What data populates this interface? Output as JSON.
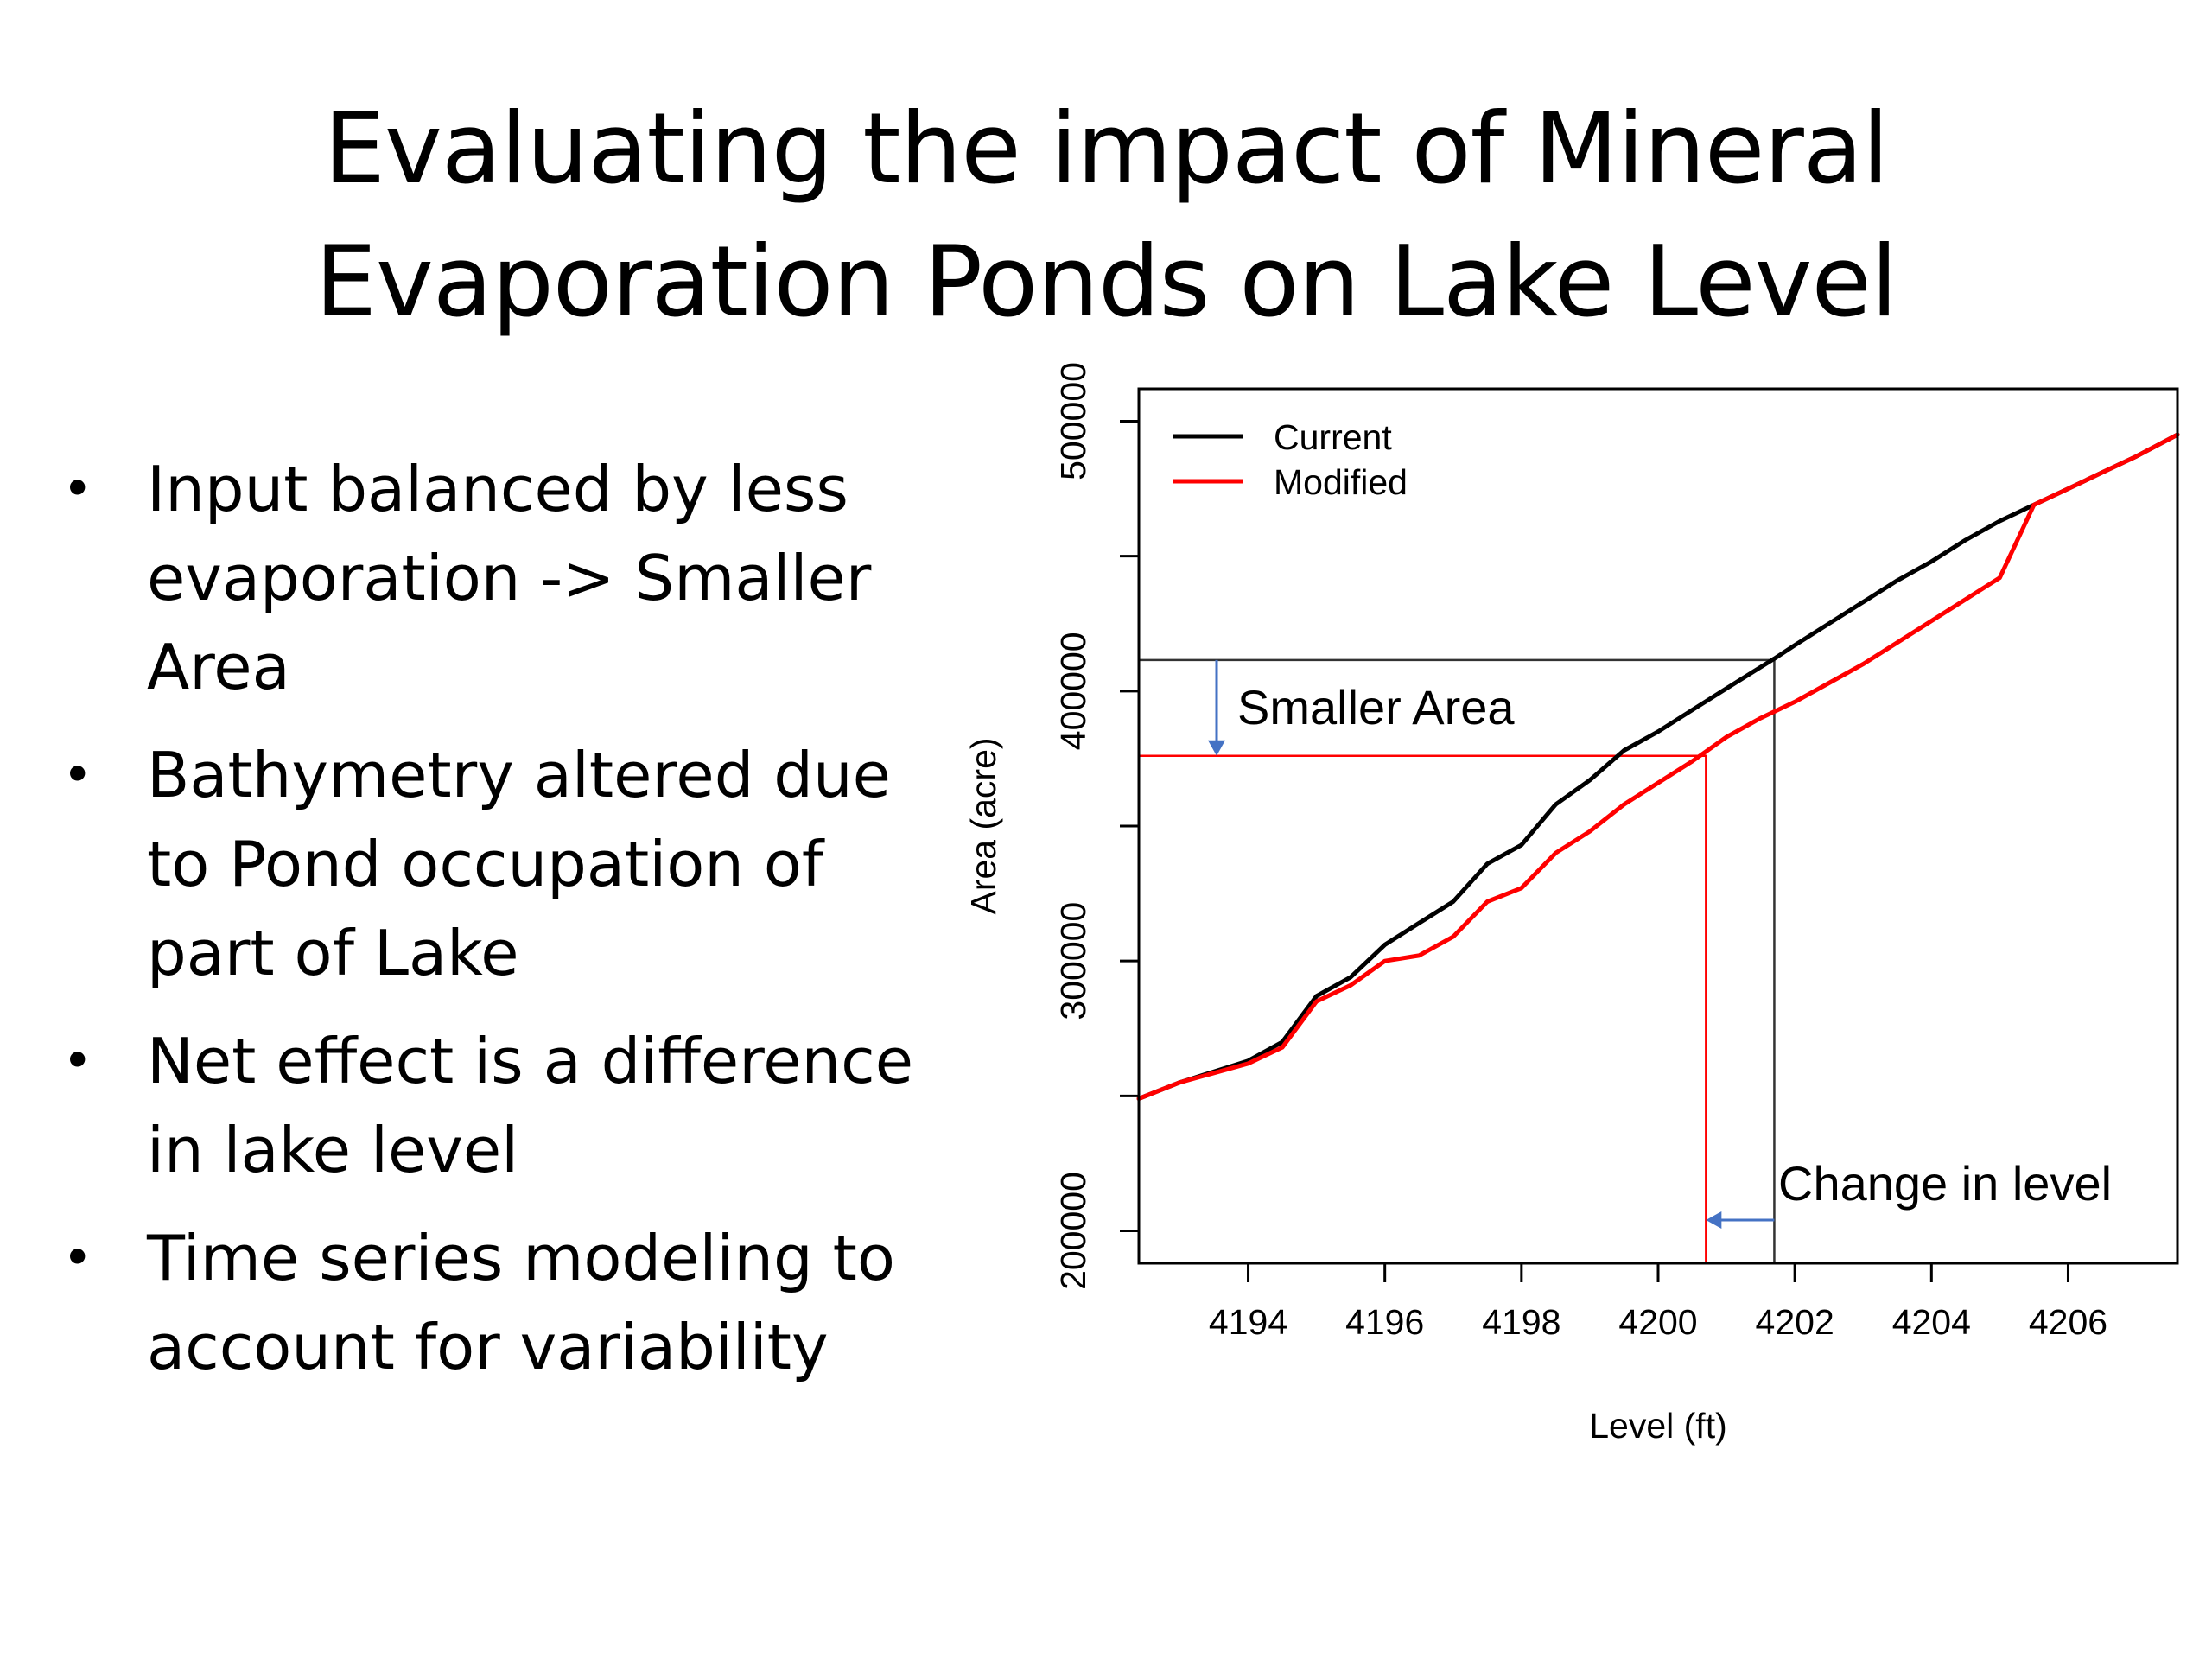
{
  "slide": {
    "title_lines": [
      "Evaluating the impact of Mineral",
      "Evaporation Ponds on Lake Level"
    ],
    "bullets": [
      [
        "Input balanced by less",
        "evaporation -> Smaller",
        "Area"
      ],
      [
        "Bathymetry altered due",
        "to Pond occupation of",
        "part of Lake"
      ],
      [
        "Net effect is a difference",
        "in lake level"
      ],
      [
        "Time series modeling to",
        "account for variability"
      ]
    ],
    "bullet_symbol": "•"
  },
  "chart_data": {
    "type": "line",
    "xlabel": "Level (ft)",
    "ylabel": "Area (acre)",
    "xlim": [
      4192.4,
      4207.6
    ],
    "ylim": [
      188000,
      512000
    ],
    "x_ticks": [
      4194,
      4196,
      4198,
      4200,
      4202,
      4204,
      4206
    ],
    "x_tick_labels": [
      "4194",
      "4196",
      "4198",
      "4200",
      "4202",
      "4204",
      "4206"
    ],
    "y_ticks": [
      200000,
      250000,
      300000,
      350000,
      400000,
      450000,
      500000
    ],
    "y_tick_labels": [
      "200000",
      "",
      "300000",
      "",
      "400000",
      "",
      "500000"
    ],
    "grid": false,
    "legend": {
      "position": "top-left",
      "entries": [
        "Current",
        "Modified"
      ]
    },
    "series": [
      {
        "name": "Current",
        "color": "#000000",
        "x": [
          4192.4,
          4193,
          4194,
          4194.5,
          4195,
          4195.5,
          4196,
          4196.5,
          4197,
          4197.5,
          4198,
          4198.5,
          4199,
          4199.5,
          4200,
          4200.5,
          4201,
          4201.7,
          4202,
          4202.5,
          4203,
          4203.5,
          4204,
          4204.5,
          4205,
          4205.5,
          4206,
          4206.5,
          4207,
          4207.6
        ],
        "y": [
          249000,
          255000,
          263000,
          270000,
          287000,
          294000,
          306000,
          314000,
          322000,
          336000,
          343000,
          358000,
          367000,
          378000,
          385000,
          393000,
          401000,
          412000,
          417000,
          425000,
          433000,
          441000,
          448000,
          456000,
          463000,
          469000,
          475000,
          481000,
          487000,
          495000
        ]
      },
      {
        "name": "Modified",
        "color": "#ff0000",
        "x": [
          4192.4,
          4193,
          4194,
          4194.5,
          4195,
          4195.5,
          4196,
          4196.5,
          4197,
          4197.5,
          4198,
          4198.5,
          4199,
          4199.5,
          4200,
          4200.5,
          4201,
          4201.5,
          4202,
          4202.5,
          4203,
          4203.5,
          4204,
          4204.5,
          4205,
          4205.5,
          4206,
          4206.5,
          4207,
          4207.6
        ],
        "y": [
          249000,
          255000,
          262000,
          268000,
          285000,
          291000,
          300000,
          302000,
          309000,
          322000,
          327000,
          340000,
          348000,
          358000,
          366000,
          374000,
          383000,
          390000,
          396000,
          403000,
          410000,
          418000,
          426000,
          434000,
          442000,
          469000,
          475000,
          481000,
          487000,
          495000
        ]
      }
    ],
    "annotations": [
      {
        "text": "Smaller Area",
        "current_area": 411500,
        "modified_area": 376000
      },
      {
        "text": "Change in level",
        "current_level": 4201.7,
        "modified_level": 4200.7
      }
    ],
    "annotation_color": "#4472c4"
  }
}
